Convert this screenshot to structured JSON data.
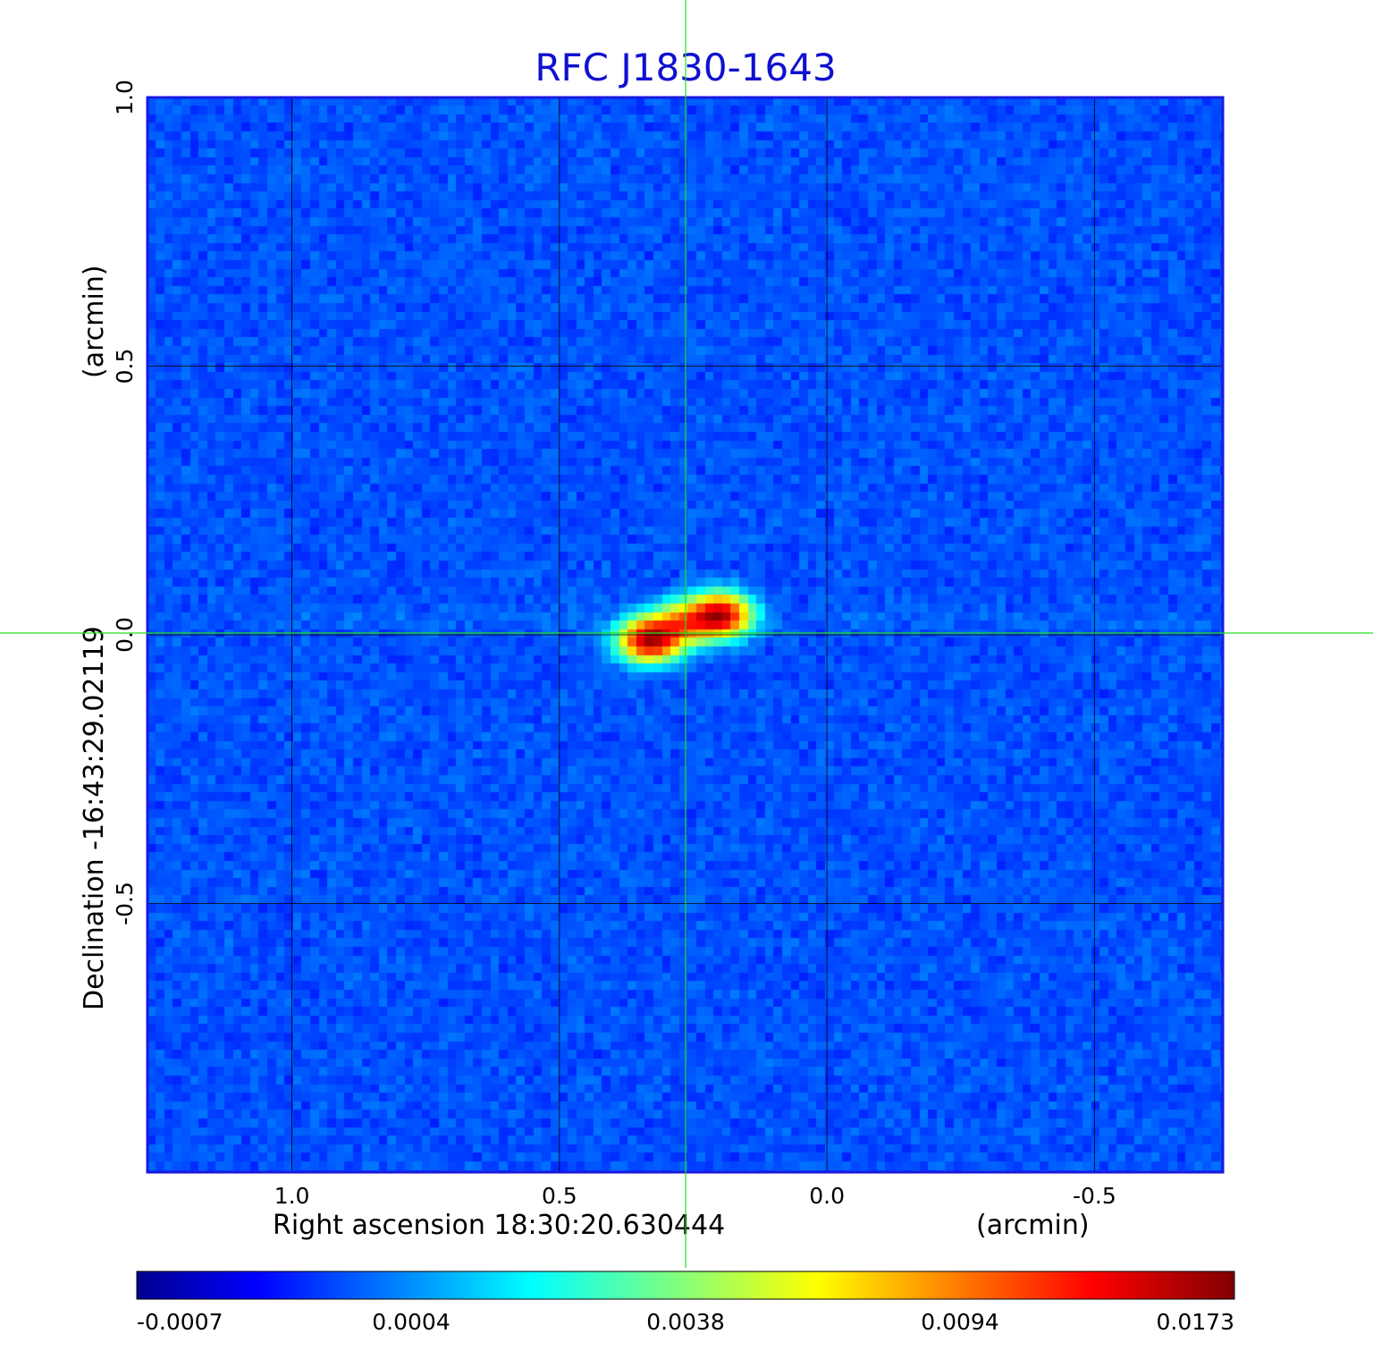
{
  "chart_data": {
    "type": "heatmap",
    "title": "RFC J1830-1643",
    "xlabel": "Right ascension  18:30:20.630444",
    "xunit": "(arcmin)",
    "ylabel": "Declination  -16:43:29.02119",
    "yunit": "(arcmin)",
    "xlim": [
      1.27,
      -0.74
    ],
    "ylim": [
      -1.0,
      1.0
    ],
    "x_ticks": [
      1.0,
      0.5,
      0.0,
      -0.5
    ],
    "x_tick_labels": [
      "1.0",
      "0.5",
      "0.0",
      "-0.5"
    ],
    "y_ticks": [
      1.0,
      0.5,
      0.0,
      -0.5
    ],
    "y_tick_labels": [
      "1.0",
      "0.5",
      "0.0",
      "-0.5"
    ],
    "grid": true,
    "crosshair": {
      "x": 0.265,
      "y": 0.015,
      "color": "#00ff00"
    },
    "colormap": "jet",
    "colorbar": {
      "labels": [
        "-0.0007",
        "0.0004",
        "0.0038",
        "0.0094",
        "0.0173"
      ],
      "min": -0.0007,
      "max": 0.0173
    },
    "source_components": [
      {
        "x": 0.33,
        "y": -0.01,
        "peak": 0.0173
      },
      {
        "x": 0.2,
        "y": 0.035,
        "peak": 0.0173
      },
      {
        "x": 0.27,
        "y": 0.02,
        "peak": 0.0094
      }
    ],
    "noise_level": 0.0
  }
}
